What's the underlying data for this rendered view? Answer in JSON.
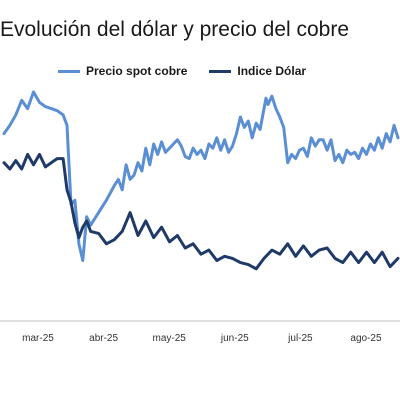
{
  "title": "Evolución del dólar y precio del cobre",
  "chart_data": {
    "type": "line",
    "title": "Evolución del dólar y precio del cobre",
    "xlabel": "",
    "ylabel": "",
    "legend_position": "top",
    "grid": false,
    "x_tick_labels": [
      "mar-25",
      "abr-25",
      "may-25",
      "jun-25",
      "jul-25",
      "ago-25"
    ],
    "x_range": [
      0,
      100
    ],
    "y_range": [
      0,
      100
    ],
    "series": [
      {
        "name": "Precio spot cobre",
        "color": "#5b8fd4",
        "x": [
          0,
          1.5,
          3,
          4.5,
          6,
          7.5,
          9,
          10.5,
          12,
          13.5,
          15,
          16,
          17,
          18,
          19,
          20,
          21,
          22,
          24,
          26,
          28,
          29,
          30,
          31,
          32,
          33,
          34,
          35,
          36,
          37,
          38,
          39,
          40,
          41,
          42,
          43,
          44,
          45,
          46,
          47,
          48,
          49,
          50,
          51,
          52,
          53,
          54,
          55,
          56,
          57,
          58,
          59,
          60,
          61,
          62,
          63,
          64,
          65,
          66,
          66.5,
          67,
          68,
          69,
          70,
          71,
          72,
          73,
          74,
          75,
          76,
          77,
          78,
          79,
          80,
          81,
          82,
          83,
          84,
          85,
          86,
          87,
          88,
          89,
          90,
          91,
          92,
          93,
          94,
          95,
          96,
          97,
          98,
          99,
          100
        ],
        "y": [
          80,
          84,
          89,
          96,
          92,
          100,
          95,
          93,
          92,
          91,
          89,
          84,
          46,
          48,
          27,
          19,
          40,
          36,
          42,
          48,
          55,
          58,
          53,
          65,
          58,
          60,
          66,
          62,
          73,
          65,
          75,
          70,
          76,
          71,
          73,
          75,
          77,
          74,
          69,
          68,
          73,
          70,
          72,
          68,
          75,
          73,
          78,
          72,
          77,
          71,
          74,
          80,
          88,
          83,
          86,
          78,
          85,
          82,
          92,
          97,
          94,
          98,
          92,
          88,
          83,
          66,
          70,
          68,
          72,
          73,
          69,
          78,
          74,
          77,
          77,
          72,
          77,
          67,
          70,
          66,
          72,
          70,
          71,
          68,
          73,
          70,
          75,
          72,
          78,
          73,
          80,
          76,
          84,
          78
        ]
      },
      {
        "name": "Indice Dólar",
        "color": "#1f3a68",
        "x": [
          0,
          1.5,
          3,
          4.5,
          6,
          7.5,
          9,
          10.5,
          12,
          13.5,
          15,
          16,
          17,
          18,
          19,
          20,
          21,
          22,
          24,
          26,
          28,
          30,
          32,
          34,
          36,
          38,
          40,
          42,
          44,
          46,
          48,
          50,
          52,
          54,
          56,
          58,
          60,
          62,
          64,
          66,
          68,
          70,
          72,
          74,
          76,
          78,
          80,
          82,
          84,
          86,
          88,
          90,
          92,
          94,
          96,
          98,
          100
        ],
        "y": [
          66,
          63,
          67,
          63,
          70,
          65,
          70,
          64,
          66,
          68,
          68,
          53,
          47,
          37,
          30,
          35,
          38,
          33,
          32,
          27,
          29,
          33,
          42,
          31,
          38,
          30,
          35,
          28,
          31,
          25,
          27,
          22,
          24,
          19,
          21,
          20,
          18,
          17,
          15,
          20,
          24,
          22,
          27,
          21,
          26,
          21,
          24,
          25,
          20,
          18,
          23,
          18,
          23,
          18,
          23,
          16,
          20
        ]
      }
    ]
  }
}
